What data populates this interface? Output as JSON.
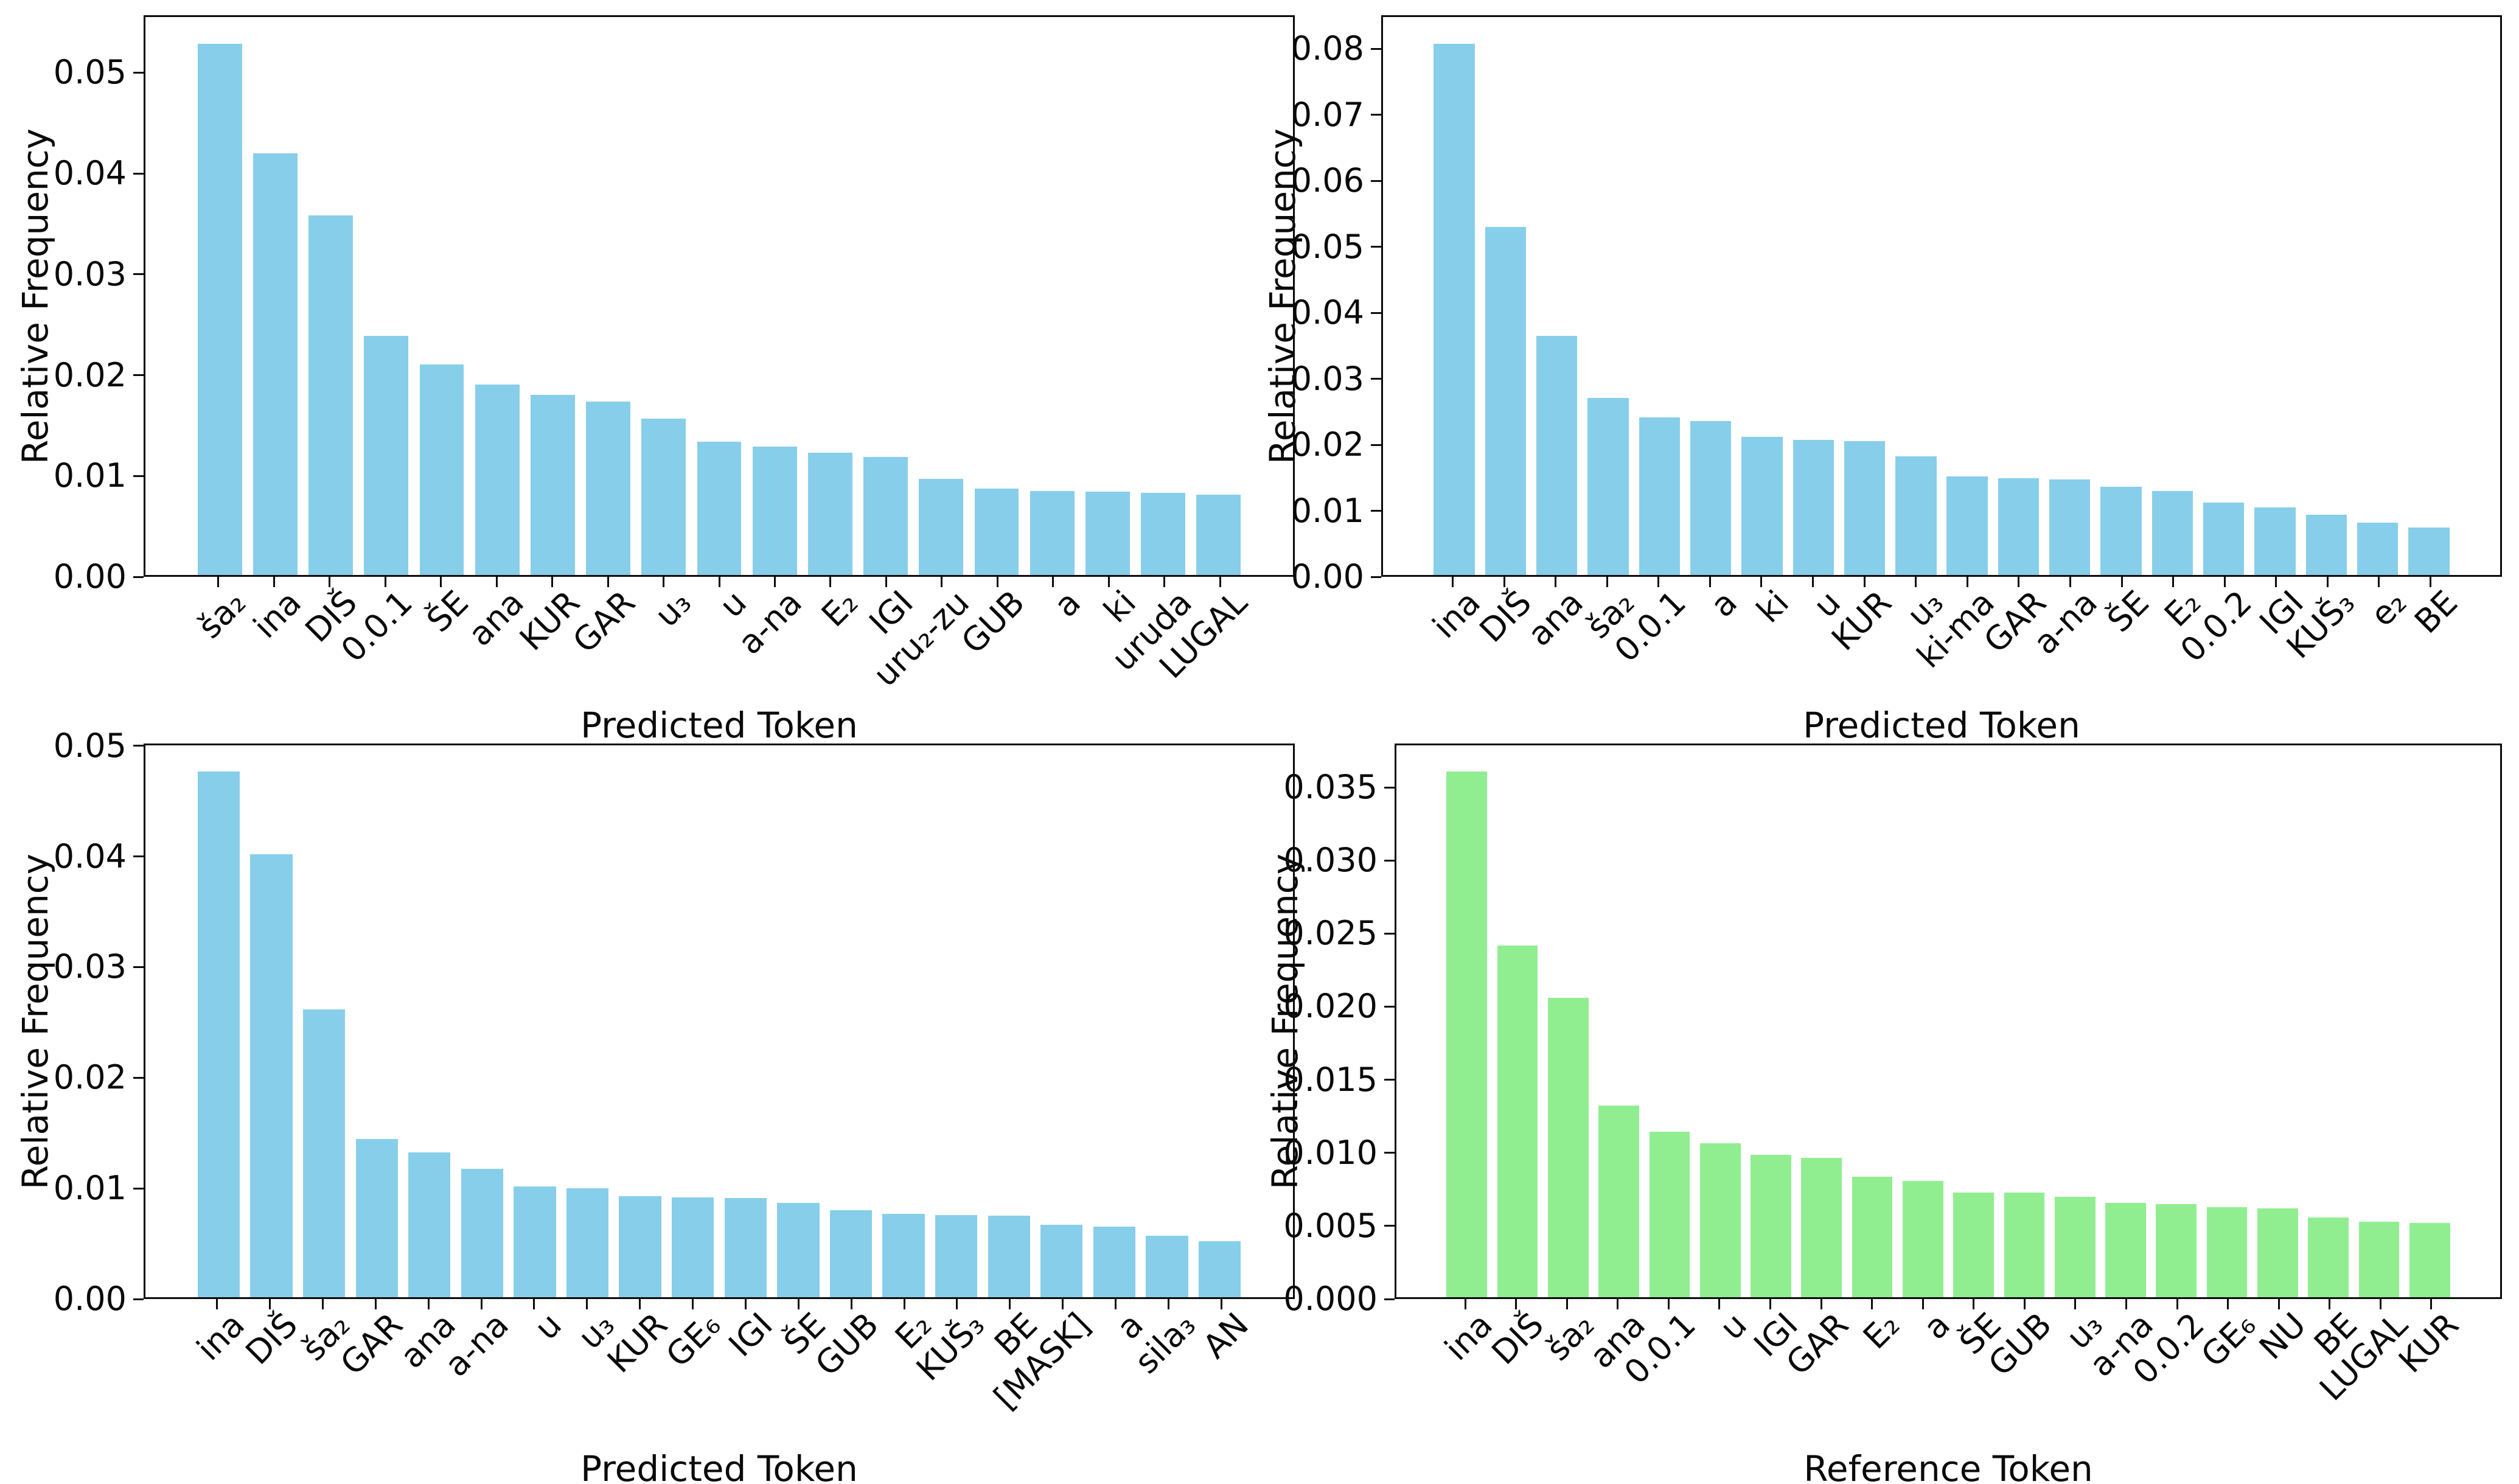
{
  "figure": {
    "background": "#ffffff",
    "text_color": "#0a0a0a",
    "ylabel_text": "Relative Frequency",
    "predicted_xlabel_text": "Predicted Token",
    "reference_xlabel_text": "Reference Token"
  },
  "chart_data": [
    {
      "id": "top-left",
      "type": "bar",
      "title": "",
      "xlabel": "Predicted Token",
      "ylabel": "Relative Frequency",
      "bar_color": "#87CEEB",
      "grid": false,
      "legend": "none",
      "ylim": [
        0,
        0.0557
      ],
      "yticks": {
        "labels": [
          "0.00",
          "0.01",
          "0.02",
          "0.03",
          "0.04",
          "0.05"
        ],
        "values": [
          0,
          0.01,
          0.02,
          0.03,
          0.04,
          0.05
        ]
      },
      "categories": [
        "ša₂",
        "ina",
        "DIŠ",
        "0.0.1",
        "ŠE",
        "ana",
        "KUR",
        "GAR",
        "u₃",
        "u",
        "a-na",
        "E₂",
        "IGI",
        "uru₂-zu",
        "GUB",
        "a",
        "ki",
        "uruda",
        "LUGAL"
      ],
      "values": [
        0.053,
        0.0421,
        0.0359,
        0.0239,
        0.021,
        0.019,
        0.018,
        0.0173,
        0.0156,
        0.0133,
        0.0128,
        0.0122,
        0.0118,
        0.0096,
        0.0086,
        0.0084,
        0.0083,
        0.0082,
        0.008
      ]
    },
    {
      "id": "top-right",
      "type": "bar",
      "title": "",
      "xlabel": "Predicted Token",
      "ylabel": "Relative Frequency",
      "bar_color": "#87CEEB",
      "grid": false,
      "legend": "none",
      "ylim": [
        0,
        0.0851
      ],
      "yticks": {
        "labels": [
          "0.00",
          "0.01",
          "0.02",
          "0.03",
          "0.04",
          "0.05",
          "0.06",
          "0.07",
          "0.08"
        ],
        "values": [
          0,
          0.01,
          0.02,
          0.03,
          0.04,
          0.05,
          0.06,
          0.07,
          0.08
        ]
      },
      "categories": [
        "ina",
        "DIŠ",
        "ana",
        "ša₂",
        "0.0.1",
        "a",
        "ki",
        "u",
        "KUR",
        "u₃",
        "ki-ma",
        "GAR",
        "a-na",
        "ŠE",
        "E₂",
        "0.0.2",
        "IGI",
        "KUŠ₃",
        "e₂",
        "BE"
      ],
      "values": [
        0.081,
        0.0531,
        0.0365,
        0.027,
        0.024,
        0.0235,
        0.0211,
        0.0206,
        0.0204,
        0.0181,
        0.015,
        0.0148,
        0.0146,
        0.0135,
        0.0128,
        0.011,
        0.0103,
        0.0092,
        0.008,
        0.0072
      ]
    },
    {
      "id": "bottom-left",
      "type": "bar",
      "title": "",
      "xlabel": "Predicted Token",
      "ylabel": "Relative Frequency",
      "bar_color": "#87CEEB",
      "grid": false,
      "legend": "none",
      "ylim": [
        0,
        0.0502
      ],
      "yticks": {
        "labels": [
          "0.00",
          "0.01",
          "0.02",
          "0.03",
          "0.04",
          "0.05"
        ],
        "values": [
          0,
          0.01,
          0.02,
          0.03,
          0.04,
          0.05
        ]
      },
      "categories": [
        "ina",
        "DIŠ",
        "ša₂",
        "GAR",
        "ana",
        "a-na",
        "u",
        "u₃",
        "KUR",
        "GE₆",
        "IGI",
        "ŠE",
        "GUB",
        "E₂",
        "KUŠ₃",
        "BE",
        "[MASK]",
        "a",
        "sila₃",
        "AN"
      ],
      "values": [
        0.0478,
        0.0403,
        0.0262,
        0.0144,
        0.0132,
        0.0117,
        0.0101,
        0.0099,
        0.0092,
        0.0091,
        0.009,
        0.0086,
        0.0079,
        0.0076,
        0.0075,
        0.0074,
        0.0066,
        0.0064,
        0.0056,
        0.0051
      ]
    },
    {
      "id": "bottom-right",
      "type": "bar",
      "title": "",
      "xlabel": "Reference Token",
      "ylabel": "Relative Frequency",
      "bar_color": "#90EE90",
      "grid": false,
      "legend": "none",
      "ylim": [
        0,
        0.038
      ],
      "yticks": {
        "labels": [
          "0.000",
          "0.005",
          "0.010",
          "0.015",
          "0.020",
          "0.025",
          "0.030",
          "0.035"
        ],
        "values": [
          0,
          0.005,
          0.01,
          0.015,
          0.02,
          0.025,
          0.03,
          0.035
        ]
      },
      "categories": [
        "ina",
        "DIŠ",
        "ša₂",
        "ana",
        "0.0.1",
        "u",
        "IGI",
        "GAR",
        "E₂",
        "a",
        "ŠE",
        "GUB",
        "u₃",
        "a-na",
        "0.0.2",
        "GE₆",
        "NU",
        "BE",
        "LUGAL",
        "KUR"
      ],
      "values": [
        0.0362,
        0.0242,
        0.0206,
        0.0132,
        0.0114,
        0.0106,
        0.0098,
        0.0096,
        0.0083,
        0.008,
        0.0072,
        0.0072,
        0.0069,
        0.0065,
        0.0064,
        0.0062,
        0.0061,
        0.0055,
        0.0052,
        0.0051
      ]
    }
  ]
}
